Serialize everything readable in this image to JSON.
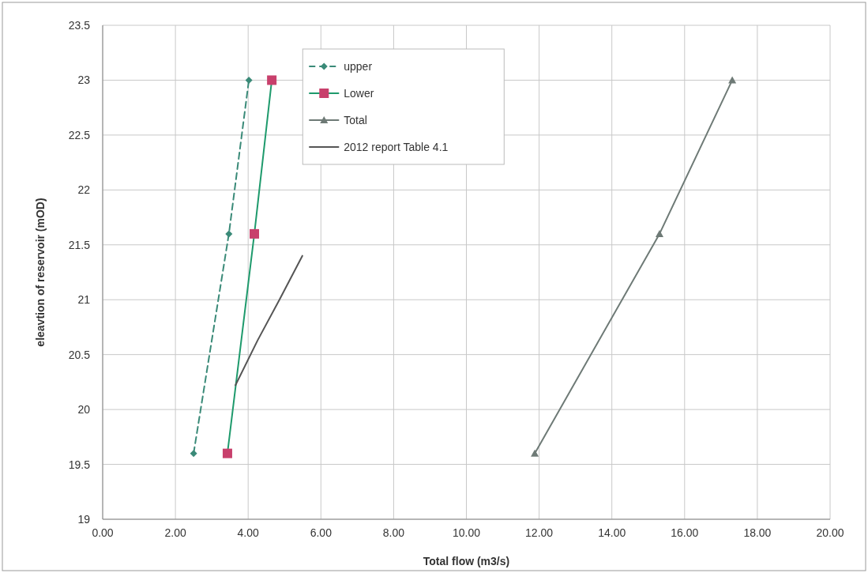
{
  "chart_data": {
    "type": "line",
    "xlabel": "Total flow (m3/s)",
    "ylabel": "eleavtion of reservoir (mOD)",
    "xlim": [
      0,
      20
    ],
    "xticks": [
      {
        "value": 0,
        "label": "0.00"
      },
      {
        "value": 2,
        "label": "2.00"
      },
      {
        "value": 4,
        "label": "4.00"
      },
      {
        "value": 6,
        "label": "6.00"
      },
      {
        "value": 8,
        "label": "8.00"
      },
      {
        "value": 10,
        "label": "10.00"
      },
      {
        "value": 12,
        "label": "12.00"
      },
      {
        "value": 14,
        "label": "14.00"
      },
      {
        "value": 16,
        "label": "16.00"
      },
      {
        "value": 18,
        "label": "18.00"
      },
      {
        "value": 20,
        "label": "20.00"
      }
    ],
    "ylim": [
      19,
      23.5
    ],
    "yticks": [
      19,
      19.5,
      20,
      20.5,
      21,
      21.5,
      22,
      22.5,
      23,
      23.5
    ],
    "grid": true,
    "legend": "top",
    "series": [
      {
        "name": "upper",
        "color": "#3a8a78",
        "x": [
          2.5,
          3.47,
          4.02
        ],
        "values": [
          19.6,
          21.6,
          23.0
        ],
        "marker": "diamond",
        "line_style": "dashed"
      },
      {
        "name": "Lower",
        "color": "#1e9a6c",
        "x": [
          3.43,
          4.17,
          4.65
        ],
        "values": [
          19.6,
          21.6,
          23.0
        ],
        "marker": "square",
        "line_style": "solid"
      },
      {
        "name": "Total",
        "color": "#6e7a76",
        "x": [
          11.88,
          15.31,
          17.31
        ],
        "values": [
          19.6,
          21.6,
          23.0
        ],
        "marker": "triangle",
        "line_style": "solid"
      },
      {
        "name": "2012 report Table 4.1",
        "color": "#555555",
        "x": [
          3.65,
          4.26,
          4.86,
          5.49
        ],
        "values": [
          20.22,
          20.63,
          21.0,
          21.4
        ],
        "marker": "none",
        "line_style": "solid"
      }
    ]
  }
}
